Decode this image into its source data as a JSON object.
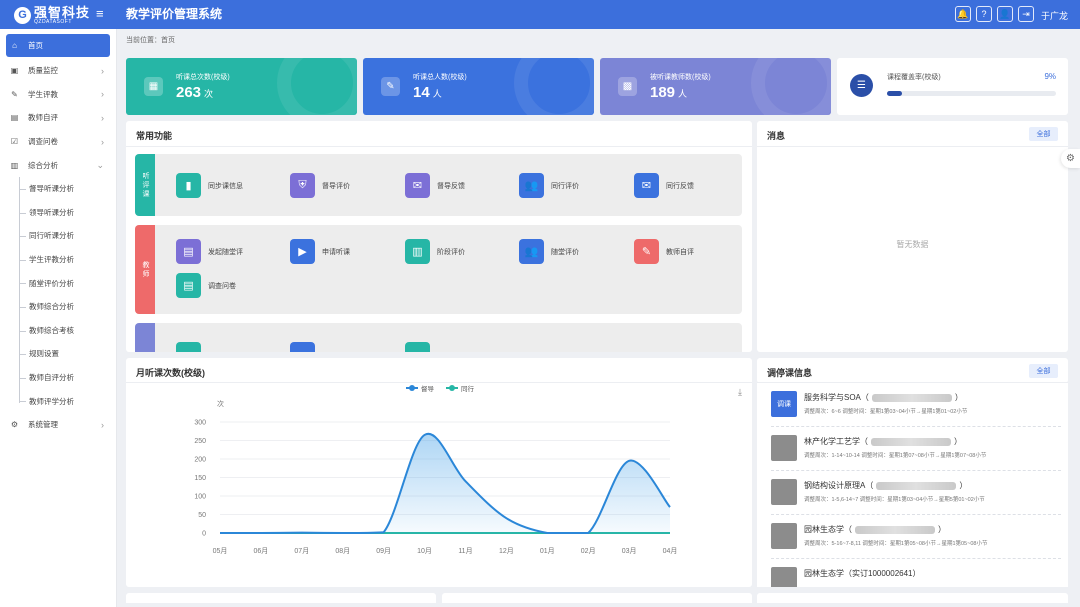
{
  "header": {
    "logo_mark": "G",
    "logo_main": "强智科技",
    "logo_sub": "QZDATASOFT",
    "menu_icon": "≡",
    "title": "教学评价管理系统",
    "user": "于广龙",
    "icons": [
      {
        "name": "bell-icon",
        "glyph": "🔔"
      },
      {
        "name": "help-icon",
        "glyph": "?"
      },
      {
        "name": "user-icon",
        "glyph": "👤"
      },
      {
        "name": "logout-icon",
        "glyph": "⇥"
      }
    ]
  },
  "sidebar": {
    "items": [
      {
        "label": "首页",
        "icon": "⌂",
        "active": true
      },
      {
        "label": "质量监控",
        "icon": "▣",
        "chev": "›"
      },
      {
        "label": "学生评教",
        "icon": "✎",
        "chev": "›"
      },
      {
        "label": "教师自评",
        "icon": "▤",
        "chev": "›"
      },
      {
        "label": "调查问卷",
        "icon": "☑",
        "chev": "›"
      },
      {
        "label": "综合分析",
        "icon": "▥",
        "chev": "⌄"
      }
    ],
    "subitems": [
      "督导听课分析",
      "领导听课分析",
      "同行听课分析",
      "学生评教分析",
      "随堂评价分析",
      "教师综合分析",
      "教师综合考核",
      "规则设置",
      "教师自评分析",
      "教师评学分析"
    ],
    "system": {
      "label": "系统管理",
      "icon": "⚙",
      "chev": "›"
    }
  },
  "breadcrumb": "当前位置：首页",
  "stats": [
    {
      "label": "听课总次数(校级)",
      "value": "263",
      "unit": "次",
      "icon": "▦",
      "color": "#26b6a6"
    },
    {
      "label": "听课总人数(校级)",
      "value": "14",
      "unit": "人",
      "icon": "✎",
      "color": "#3b72de"
    },
    {
      "label": "被听课教师数(校级)",
      "value": "189",
      "unit": "人",
      "icon": "▩",
      "color": "#7c85d6"
    }
  ],
  "coverage": {
    "label": "课程覆盖率(校级)",
    "pct": "9%",
    "value": 0.09,
    "icon": "☰"
  },
  "common": {
    "title": "常用功能",
    "cat1": {
      "tab": "听评课",
      "color": "#26b6a6",
      "items": [
        {
          "label": "同步课信息",
          "icon": "▮",
          "color": "#26b6a6"
        },
        {
          "label": "督导评价",
          "icon": "⛨",
          "color": "#7c6fd6"
        },
        {
          "label": "督导反馈",
          "icon": "✉",
          "color": "#7c6fd6"
        },
        {
          "label": "同行评价",
          "icon": "👥",
          "color": "#3b72de"
        },
        {
          "label": "同行反馈",
          "icon": "✉",
          "color": "#3b72de"
        }
      ]
    },
    "cat2": {
      "tab": "教师",
      "color": "#ee6a6a",
      "items": [
        {
          "label": "发起随堂评",
          "icon": "▤",
          "color": "#7c6fd6"
        },
        {
          "label": "申请听课",
          "icon": "▶",
          "color": "#3b72de"
        },
        {
          "label": "阶段评价",
          "icon": "▥",
          "color": "#26b6a6"
        },
        {
          "label": "随堂评价",
          "icon": "👥",
          "color": "#3b72de"
        },
        {
          "label": "教师自评",
          "icon": "✎",
          "color": "#ee6a6a"
        },
        {
          "label": "调查问卷",
          "icon": "▤",
          "color": "#26b6a6"
        }
      ]
    }
  },
  "messages": {
    "title": "消息",
    "all": "全部",
    "empty": "暂无数据"
  },
  "chart_panel": {
    "title": "月听课次数(校级)",
    "ylabel": "次",
    "download_icon": "⤓"
  },
  "chart_data": {
    "type": "area",
    "title": "月听课次数(校级)",
    "ylabel": "次",
    "categories": [
      "05月",
      "06月",
      "07月",
      "08月",
      "09月",
      "10月",
      "11月",
      "12月",
      "01月",
      "02月",
      "03月",
      "04月"
    ],
    "yticks": [
      "300",
      "250",
      "200",
      "150",
      "100",
      "50",
      "0"
    ],
    "ylim": [
      0,
      300
    ],
    "series": [
      {
        "name": "督导",
        "color": "#2b87d8",
        "values": [
          0,
          0,
          1,
          0,
          2,
          265,
          140,
          40,
          0,
          0,
          195,
          70
        ]
      },
      {
        "name": "同行",
        "color": "#26b6a6",
        "values": [
          0,
          0,
          0,
          0,
          0,
          0,
          0,
          0,
          0,
          0,
          0,
          0
        ]
      }
    ]
  },
  "timetable": {
    "title": "调停课信息",
    "all": "全部",
    "badge": "调课",
    "items": [
      {
        "name": "服务科学与SOA（",
        "close": "）",
        "detail": "调整周次：6~6 调整时间：星期1第03~04小节→星期1第01~02小节"
      },
      {
        "name": "林产化学工艺学（",
        "close": "）",
        "detail": "调整周次：1-14~10-14 调整时间：星期1第07~08小节→星期1第07~08小节"
      },
      {
        "name": "钢结构设计原理A（",
        "close": "）",
        "detail": "调整周次：1-5,6-14~7 调整时间：星期1第03~04小节→星期5第01~02小节"
      },
      {
        "name": "园林生态学（",
        "close": "）",
        "detail": "调整周次：5-16~7-8,11 调整时间：星期1第05~08小节→星期1第05~08小节"
      },
      {
        "name": "园林生态学（实订1000002641）",
        "close": "",
        "detail": ""
      }
    ]
  }
}
